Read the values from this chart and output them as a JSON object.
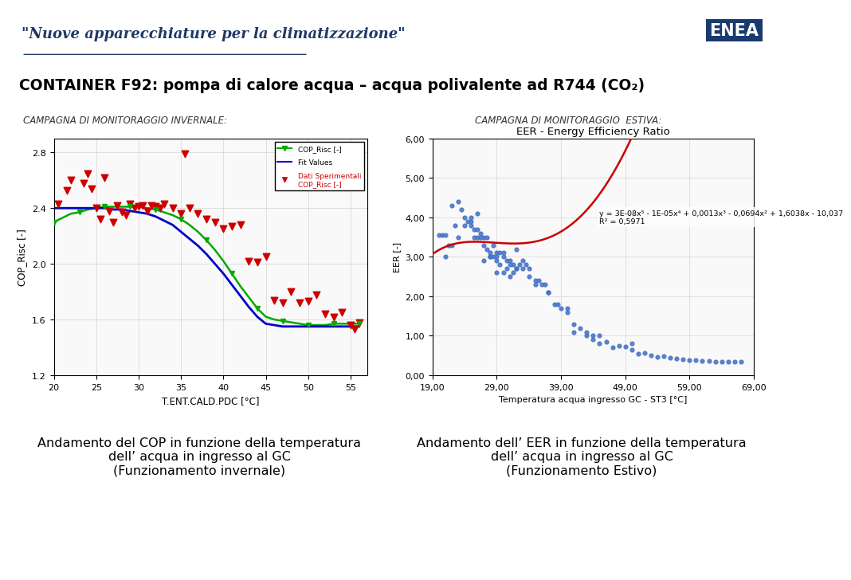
{
  "title_header": "\"Nuove apparecchiature per la climatizzazione\"",
  "main_title": "CONTAINER F92: pompa di calore acqua – acqua polivalente ad R744 (CO₂)",
  "left_subtitle": "CAMPAGNA DI MONITORAGGIO INVERNALE:",
  "right_subtitle": "CAMPAGNA DI MONITORAGGIO  ESTIVA:",
  "left_caption": "Andamento del COP in funzione della temperatura\ndell’ acqua in ingresso al GC\n(Funzionamento invernale)",
  "right_caption": "Andamento dell’ EER in funzione della temperatura\ndell’ acqua in ingresso al GC\n(Funzionamento Estivo)",
  "left_plot": {
    "xlabel": "T.ENT.CALD.PDC [°C]",
    "ylabel": "COP_Risc [-]",
    "xlim": [
      20,
      57
    ],
    "ylim": [
      1.2,
      2.9
    ],
    "xticks": [
      20,
      25,
      30,
      35,
      40,
      45,
      50,
      55
    ],
    "yticks": [
      1.2,
      1.6,
      2.0,
      2.4,
      2.8
    ],
    "scatter_x": [
      20.5,
      21.5,
      22.0,
      23.5,
      24.0,
      24.5,
      25.0,
      25.5,
      26.0,
      26.5,
      27.0,
      27.5,
      28.0,
      28.5,
      29.0,
      29.5,
      30.0,
      30.5,
      31.0,
      31.5,
      32.0,
      32.5,
      33.0,
      34.0,
      35.0,
      35.5,
      36.0,
      37.0,
      38.0,
      39.0,
      40.0,
      41.0,
      42.0,
      43.0,
      44.0,
      45.0,
      46.0,
      47.0,
      48.0,
      49.0,
      50.0,
      51.0,
      52.0,
      53.0,
      54.0,
      55.0,
      55.5,
      56.0
    ],
    "scatter_y": [
      2.43,
      2.53,
      2.6,
      2.58,
      2.65,
      2.54,
      2.4,
      2.32,
      2.62,
      2.38,
      2.3,
      2.42,
      2.37,
      2.35,
      2.43,
      2.4,
      2.41,
      2.42,
      2.38,
      2.42,
      2.41,
      2.4,
      2.43,
      2.4,
      2.36,
      2.79,
      2.4,
      2.36,
      2.32,
      2.3,
      2.25,
      2.27,
      2.28,
      2.02,
      2.01,
      2.05,
      1.74,
      1.72,
      1.8,
      1.72,
      1.73,
      1.78,
      1.64,
      1.62,
      1.65,
      1.56,
      1.53,
      1.58
    ],
    "green_x": [
      20,
      21,
      22,
      23,
      24,
      25,
      26,
      27,
      28,
      29,
      30,
      31,
      32,
      33,
      34,
      35,
      36,
      37,
      38,
      39,
      40,
      41,
      42,
      43,
      44,
      45,
      46,
      47,
      48,
      49,
      50,
      51,
      52,
      53,
      54,
      55,
      56
    ],
    "green_y": [
      2.3,
      2.33,
      2.36,
      2.37,
      2.39,
      2.4,
      2.41,
      2.41,
      2.41,
      2.41,
      2.41,
      2.4,
      2.39,
      2.37,
      2.35,
      2.32,
      2.28,
      2.23,
      2.17,
      2.1,
      2.02,
      1.93,
      1.84,
      1.76,
      1.68,
      1.62,
      1.6,
      1.59,
      1.58,
      1.57,
      1.56,
      1.56,
      1.56,
      1.57,
      1.57,
      1.57,
      1.57
    ],
    "blue_x": [
      20,
      21,
      22,
      23,
      24,
      25,
      26,
      27,
      28,
      29,
      30,
      31,
      32,
      33,
      34,
      35,
      36,
      37,
      38,
      39,
      40,
      41,
      42,
      43,
      44,
      45,
      46,
      47,
      48,
      49,
      50,
      51,
      52,
      53,
      54,
      55,
      56
    ],
    "blue_y": [
      2.4,
      2.4,
      2.4,
      2.4,
      2.4,
      2.4,
      2.4,
      2.39,
      2.39,
      2.38,
      2.37,
      2.36,
      2.34,
      2.31,
      2.28,
      2.23,
      2.18,
      2.13,
      2.07,
      2.0,
      1.93,
      1.85,
      1.77,
      1.69,
      1.62,
      1.57,
      1.56,
      1.55,
      1.55,
      1.55,
      1.55,
      1.55,
      1.55,
      1.55,
      1.55,
      1.55,
      1.55
    ],
    "scatter_color": "#cc0000",
    "green_color": "#00aa00",
    "blue_color": "#0000cc"
  },
  "right_plot": {
    "title": "EER - Energy Efficiency Ratio",
    "xlabel": "Temperatura acqua ingresso GC - ST3 [°C]",
    "ylabel": "EER [-]",
    "xlim": [
      19,
      69
    ],
    "ylim": [
      0,
      6.0
    ],
    "xticks": [
      19.0,
      29.0,
      39.0,
      49.0,
      59.0,
      69.0
    ],
    "yticks": [
      0.0,
      1.0,
      2.0,
      3.0,
      4.0,
      5.0,
      6.0
    ],
    "equation": "y = 3E-08x⁵ - 1E-05x⁴ + 0,0013x³ - 0,0694x² + 1,6038x - 10,037\nR² = 0,5971",
    "scatter_color": "#4472c4",
    "fit_color": "#cc0000",
    "scatter_x": [
      20.0,
      20.5,
      21.0,
      21.0,
      21.5,
      22.0,
      22.0,
      22.5,
      23.0,
      23.0,
      23.5,
      24.0,
      24.0,
      24.5,
      25.0,
      25.0,
      25.0,
      25.5,
      25.5,
      26.0,
      26.0,
      26.0,
      26.5,
      26.5,
      27.0,
      27.0,
      27.0,
      27.5,
      27.5,
      28.0,
      28.0,
      28.0,
      28.5,
      28.5,
      29.0,
      29.0,
      29.0,
      29.0,
      29.5,
      29.5,
      30.0,
      30.0,
      30.0,
      30.5,
      30.5,
      31.0,
      31.0,
      31.0,
      31.5,
      31.5,
      32.0,
      32.0,
      32.0,
      32.5,
      33.0,
      33.0,
      33.5,
      34.0,
      34.0,
      35.0,
      35.0,
      35.5,
      36.0,
      36.5,
      37.0,
      37.0,
      38.0,
      38.5,
      39.0,
      40.0,
      40.0,
      41.0,
      41.0,
      42.0,
      43.0,
      43.0,
      44.0,
      44.0,
      45.0,
      45.0,
      46.0,
      47.0,
      48.0,
      49.0,
      50.0,
      50.0,
      51.0,
      52.0,
      53.0,
      54.0,
      55.0,
      56.0,
      57.0,
      58.0,
      59.0,
      60.0,
      61.0,
      62.0,
      63.0,
      64.0,
      65.0,
      66.0,
      67.0
    ],
    "scatter_y": [
      3.55,
      3.56,
      3.0,
      3.55,
      3.3,
      4.3,
      3.3,
      3.8,
      3.5,
      4.4,
      4.2,
      3.8,
      4.0,
      3.9,
      3.9,
      3.8,
      4.0,
      3.7,
      3.5,
      3.5,
      4.1,
      3.7,
      3.5,
      3.6,
      3.5,
      2.9,
      3.3,
      3.2,
      3.5,
      3.0,
      3.0,
      3.1,
      3.3,
      3.0,
      3.0,
      3.1,
      2.9,
      2.6,
      2.8,
      3.1,
      3.0,
      3.1,
      2.6,
      2.7,
      2.9,
      2.9,
      2.8,
      2.5,
      2.6,
      2.8,
      2.7,
      2.7,
      3.2,
      2.8,
      2.9,
      2.7,
      2.8,
      2.5,
      2.7,
      2.3,
      2.4,
      2.4,
      2.3,
      2.3,
      2.1,
      2.1,
      1.8,
      1.8,
      1.7,
      1.6,
      1.7,
      1.3,
      1.1,
      1.2,
      1.1,
      1.0,
      1.0,
      0.9,
      1.0,
      0.8,
      0.85,
      0.7,
      0.75,
      0.72,
      0.8,
      0.65,
      0.55,
      0.56,
      0.5,
      0.47,
      0.48,
      0.45,
      0.42,
      0.4,
      0.38,
      0.38,
      0.37,
      0.36,
      0.35,
      0.35,
      0.35,
      0.35,
      0.35
    ]
  },
  "bg_color": "#ffffff",
  "header_bg": "#dce6f1",
  "header_text_color": "#1f3864",
  "main_title_color": "#000000",
  "subtitle_color": "#404040"
}
